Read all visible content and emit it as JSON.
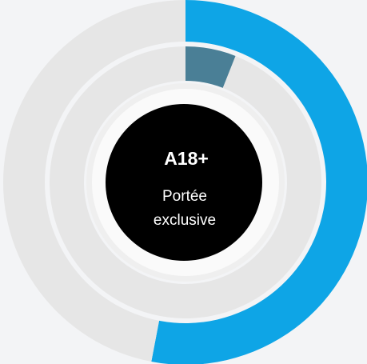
{
  "chart_data": {
    "type": "donut",
    "rings": [
      {
        "values": [
          53,
          47
        ],
        "colors": [
          "#0ea5e6",
          "#e6e6e6"
        ]
      },
      {
        "values": [
          6,
          94
        ],
        "colors": [
          "#4a7f96",
          "#e6e6e6"
        ]
      }
    ],
    "center_title": "A18+",
    "center_lines": [
      "Portée",
      "exclusive"
    ]
  }
}
